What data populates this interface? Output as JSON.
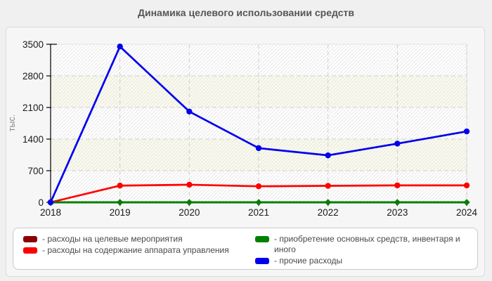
{
  "title": "Динамика целевого использовании средств",
  "chart_data": {
    "type": "line",
    "title": "Динамика целевого использовании средств",
    "xlabel": "",
    "ylabel": "тыс.",
    "categories": [
      "2018",
      "2019",
      "2020",
      "2021",
      "2022",
      "2023",
      "2024"
    ],
    "yticks": [
      0,
      700,
      1400,
      2100,
      2800,
      3500
    ],
    "ylim": [
      0,
      3500
    ],
    "grid": "dashed",
    "plot_band_fills": [
      "hatched-white",
      "cream"
    ],
    "band_cream_color": "#fafaec",
    "hatch_color": "#e6e6e6",
    "gridline_color": "#cfcfcf",
    "axis_color": "#222222",
    "tick_label_color": "#1a1a1a",
    "ylabel_color": "#8a8a8a",
    "legend_position": "bottom",
    "series": [
      {
        "name": "расходы на целевые мероприятия",
        "color": "#8b0000",
        "marker": "diamond",
        "values": [
          0,
          0,
          0,
          0,
          0,
          0,
          0
        ]
      },
      {
        "name": "расходы на содержание аппарата управления",
        "color": "#ff0000",
        "marker": "circle",
        "values": [
          0,
          370,
          390,
          355,
          365,
          375,
          375
        ]
      },
      {
        "name": "приобретение основных средств, инвентаря и иного",
        "color": "#008000",
        "marker": "diamond",
        "values": [
          0,
          0,
          0,
          0,
          0,
          0,
          0
        ]
      },
      {
        "name": "прочие расходы",
        "color": "#0000ee",
        "marker": "circle",
        "values": [
          0,
          3450,
          2010,
          1200,
          1040,
          1300,
          1570
        ]
      }
    ]
  },
  "legend": {
    "columns": [
      {
        "items": [
          {
            "label": "- расходы на целевые мероприятия",
            "color": "#8b0000"
          },
          {
            "label": "- расходы на содержание аппарата управления",
            "color": "#ff0000"
          }
        ]
      },
      {
        "items": [
          {
            "label": "- приобретение основных средств, инвентаря и иного",
            "color": "#008000"
          },
          {
            "label": "- прочие расходы",
            "color": "#0000ee"
          }
        ]
      }
    ]
  }
}
